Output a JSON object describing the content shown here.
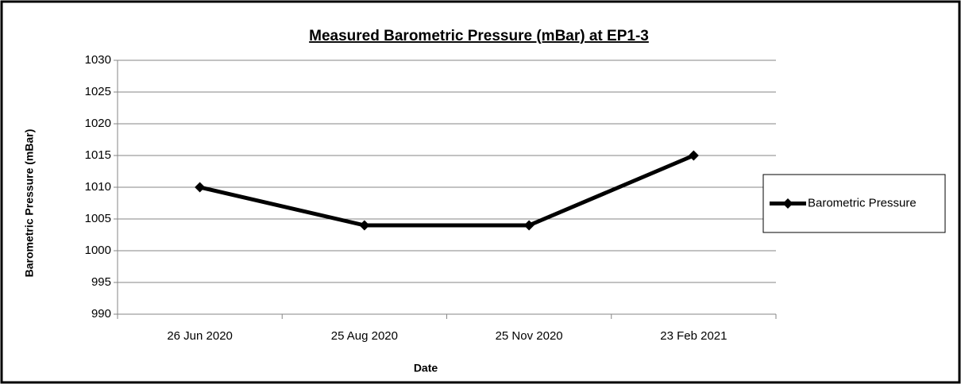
{
  "chart_data": {
    "type": "line",
    "title": "Measured Barometric Pressure (mBar) at EP1-3",
    "x_label": "Date",
    "y_label": "Barometric Pressure (mBar)",
    "categories": [
      "26 Jun 2020",
      "25 Aug 2020",
      "25 Nov 2020",
      "23 Feb 2021"
    ],
    "series": [
      {
        "name": "Barometric Pressure",
        "color": "#000000",
        "values": [
          1010,
          1004,
          1004,
          1015
        ]
      }
    ],
    "ylim": [
      990,
      1030
    ],
    "yticks": [
      990,
      995,
      1000,
      1005,
      1010,
      1015,
      1020,
      1025,
      1030
    ],
    "grid": true,
    "legend": "right"
  }
}
